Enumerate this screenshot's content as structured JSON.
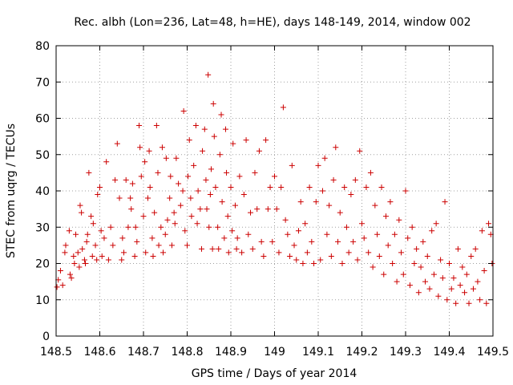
{
  "chart_data": {
    "type": "scatter",
    "title": "Rec. albh (Lon=236, Lat=48, h=HE), days 148-149, 2014, window 002",
    "xlabel": "GPS time / Days of year 2014",
    "ylabel": "STEC from uqrg / TECUs",
    "xlim": [
      148.5,
      149.5
    ],
    "ylim": [
      0,
      80
    ],
    "xticks": [
      "148.5",
      "148.6",
      "148.7",
      "148.8",
      "148.9",
      "149",
      "149.1",
      "149.2",
      "149.3",
      "149.4",
      "149.5"
    ],
    "yticks": [
      "0",
      "10",
      "20",
      "30",
      "40",
      "50",
      "60",
      "70",
      "80"
    ],
    "grid": true,
    "marker": "+",
    "color": "#cc0000",
    "points": [
      [
        148.502,
        13.5
      ],
      [
        148.505,
        15.5
      ],
      [
        148.51,
        18
      ],
      [
        148.515,
        14
      ],
      [
        148.52,
        23
      ],
      [
        148.522,
        25
      ],
      [
        148.53,
        29
      ],
      [
        148.532,
        17
      ],
      [
        148.535,
        16
      ],
      [
        148.54,
        22
      ],
      [
        148.542,
        20
      ],
      [
        148.545,
        28
      ],
      [
        148.55,
        23
      ],
      [
        148.553,
        19
      ],
      [
        148.555,
        36
      ],
      [
        148.558,
        34
      ],
      [
        148.56,
        24
      ],
      [
        148.565,
        21
      ],
      [
        148.567,
        20
      ],
      [
        148.57,
        26
      ],
      [
        148.572,
        28
      ],
      [
        148.575,
        45
      ],
      [
        148.58,
        33
      ],
      [
        148.583,
        22
      ],
      [
        148.585,
        31
      ],
      [
        148.59,
        25
      ],
      [
        148.593,
        21
      ],
      [
        148.595,
        39
      ],
      [
        148.6,
        41
      ],
      [
        148.603,
        29
      ],
      [
        148.605,
        22
      ],
      [
        148.61,
        27
      ],
      [
        148.615,
        48
      ],
      [
        148.62,
        21
      ],
      [
        148.625,
        30
      ],
      [
        148.63,
        25
      ],
      [
        148.635,
        43
      ],
      [
        148.64,
        53
      ],
      [
        148.645,
        38
      ],
      [
        148.65,
        21
      ],
      [
        148.652,
        27
      ],
      [
        148.655,
        23
      ],
      [
        148.66,
        43
      ],
      [
        148.665,
        30
      ],
      [
        148.67,
        38
      ],
      [
        148.672,
        35
      ],
      [
        148.675,
        42
      ],
      [
        148.68,
        22
      ],
      [
        148.682,
        30
      ],
      [
        148.685,
        26
      ],
      [
        148.69,
        58
      ],
      [
        148.692,
        52
      ],
      [
        148.695,
        44
      ],
      [
        148.7,
        33
      ],
      [
        148.703,
        48
      ],
      [
        148.705,
        23
      ],
      [
        148.71,
        38
      ],
      [
        148.713,
        51
      ],
      [
        148.715,
        41
      ],
      [
        148.72,
        27
      ],
      [
        148.722,
        22
      ],
      [
        148.725,
        34
      ],
      [
        148.73,
        58
      ],
      [
        148.733,
        45
      ],
      [
        148.735,
        25
      ],
      [
        148.74,
        30
      ],
      [
        148.743,
        52
      ],
      [
        148.745,
        23
      ],
      [
        148.75,
        28
      ],
      [
        148.752,
        49
      ],
      [
        148.755,
        32
      ],
      [
        148.76,
        38
      ],
      [
        148.762,
        44
      ],
      [
        148.765,
        25
      ],
      [
        148.77,
        34
      ],
      [
        148.772,
        31
      ],
      [
        148.775,
        49
      ],
      [
        148.78,
        42
      ],
      [
        148.785,
        36
      ],
      [
        148.79,
        40
      ],
      [
        148.792,
        62
      ],
      [
        148.795,
        29
      ],
      [
        148.8,
        25
      ],
      [
        148.802,
        44
      ],
      [
        148.805,
        54
      ],
      [
        148.808,
        38
      ],
      [
        148.81,
        33
      ],
      [
        148.815,
        47
      ],
      [
        148.82,
        58
      ],
      [
        148.823,
        31
      ],
      [
        148.825,
        40
      ],
      [
        148.83,
        35
      ],
      [
        148.833,
        24
      ],
      [
        148.835,
        51
      ],
      [
        148.84,
        57
      ],
      [
        148.843,
        43
      ],
      [
        148.845,
        35
      ],
      [
        148.848,
        72
      ],
      [
        148.85,
        30
      ],
      [
        148.853,
        39
      ],
      [
        148.855,
        46
      ],
      [
        148.858,
        24
      ],
      [
        148.86,
        64
      ],
      [
        148.862,
        55
      ],
      [
        148.865,
        41
      ],
      [
        148.87,
        30
      ],
      [
        148.872,
        24
      ],
      [
        148.875,
        50
      ],
      [
        148.878,
        61
      ],
      [
        148.88,
        37
      ],
      [
        148.885,
        27
      ],
      [
        148.888,
        57
      ],
      [
        148.89,
        45
      ],
      [
        148.893,
        33
      ],
      [
        148.895,
        23
      ],
      [
        148.9,
        41
      ],
      [
        148.903,
        29
      ],
      [
        148.905,
        53
      ],
      [
        148.91,
        36
      ],
      [
        148.913,
        24
      ],
      [
        148.915,
        27
      ],
      [
        148.92,
        44
      ],
      [
        148.925,
        23
      ],
      [
        148.93,
        39
      ],
      [
        148.935,
        54
      ],
      [
        148.94,
        28
      ],
      [
        148.945,
        34
      ],
      [
        148.95,
        24
      ],
      [
        148.955,
        45
      ],
      [
        148.96,
        35
      ],
      [
        148.965,
        51
      ],
      [
        148.97,
        26
      ],
      [
        148.975,
        22
      ],
      [
        148.98,
        54
      ],
      [
        148.985,
        35
      ],
      [
        148.99,
        41
      ],
      [
        148.995,
        26
      ],
      [
        149.0,
        44
      ],
      [
        149.005,
        35
      ],
      [
        149.01,
        23
      ],
      [
        149.015,
        41
      ],
      [
        149.02,
        63
      ],
      [
        149.025,
        32
      ],
      [
        149.03,
        28
      ],
      [
        149.035,
        22
      ],
      [
        149.04,
        47
      ],
      [
        149.045,
        25
      ],
      [
        149.05,
        21
      ],
      [
        149.055,
        29
      ],
      [
        149.06,
        37
      ],
      [
        149.065,
        20
      ],
      [
        149.07,
        31
      ],
      [
        149.075,
        23
      ],
      [
        149.08,
        41
      ],
      [
        149.085,
        26
      ],
      [
        149.09,
        20
      ],
      [
        149.095,
        37
      ],
      [
        149.1,
        47
      ],
      [
        149.105,
        21
      ],
      [
        149.11,
        40
      ],
      [
        149.115,
        49
      ],
      [
        149.12,
        28
      ],
      [
        149.125,
        36
      ],
      [
        149.13,
        22
      ],
      [
        149.135,
        43
      ],
      [
        149.14,
        52
      ],
      [
        149.145,
        26
      ],
      [
        149.15,
        34
      ],
      [
        149.155,
        20
      ],
      [
        149.16,
        41
      ],
      [
        149.165,
        30
      ],
      [
        149.17,
        23
      ],
      [
        149.175,
        39
      ],
      [
        149.18,
        26
      ],
      [
        149.185,
        43
      ],
      [
        149.19,
        21
      ],
      [
        149.195,
        51
      ],
      [
        149.2,
        31
      ],
      [
        149.205,
        27
      ],
      [
        149.21,
        41
      ],
      [
        149.215,
        23
      ],
      [
        149.22,
        45
      ],
      [
        149.225,
        19
      ],
      [
        149.23,
        36
      ],
      [
        149.235,
        28
      ],
      [
        149.24,
        22
      ],
      [
        149.245,
        41
      ],
      [
        149.25,
        17
      ],
      [
        149.255,
        33
      ],
      [
        149.26,
        25
      ],
      [
        149.265,
        37
      ],
      [
        149.27,
        20
      ],
      [
        149.275,
        28
      ],
      [
        149.28,
        15
      ],
      [
        149.285,
        32
      ],
      [
        149.29,
        23
      ],
      [
        149.295,
        17
      ],
      [
        149.3,
        40
      ],
      [
        149.305,
        27
      ],
      [
        149.31,
        14
      ],
      [
        149.315,
        30
      ],
      [
        149.32,
        20
      ],
      [
        149.325,
        24
      ],
      [
        149.33,
        12
      ],
      [
        149.335,
        19
      ],
      [
        149.34,
        26
      ],
      [
        149.345,
        15
      ],
      [
        149.35,
        22
      ],
      [
        149.355,
        13
      ],
      [
        149.36,
        29
      ],
      [
        149.365,
        17
      ],
      [
        149.37,
        31
      ],
      [
        149.375,
        11
      ],
      [
        149.38,
        21
      ],
      [
        149.385,
        16
      ],
      [
        149.39,
        37
      ],
      [
        149.395,
        10
      ],
      [
        149.4,
        20
      ],
      [
        149.405,
        13
      ],
      [
        149.41,
        16
      ],
      [
        149.415,
        9
      ],
      [
        149.42,
        24
      ],
      [
        149.425,
        14
      ],
      [
        149.43,
        19
      ],
      [
        149.435,
        12
      ],
      [
        149.44,
        17
      ],
      [
        149.445,
        9
      ],
      [
        149.45,
        22
      ],
      [
        149.455,
        13
      ],
      [
        149.46,
        24
      ],
      [
        149.465,
        15
      ],
      [
        149.47,
        10
      ],
      [
        149.475,
        29
      ],
      [
        149.48,
        18
      ],
      [
        149.485,
        9
      ],
      [
        149.49,
        31
      ],
      [
        149.495,
        28
      ],
      [
        149.498,
        20
      ]
    ]
  }
}
